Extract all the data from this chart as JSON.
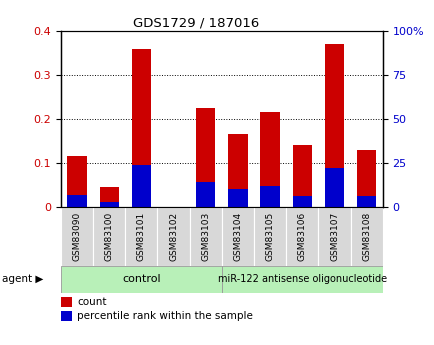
{
  "title": "GDS1729 / 187016",
  "samples": [
    "GSM83090",
    "GSM83100",
    "GSM83101",
    "GSM83102",
    "GSM83103",
    "GSM83104",
    "GSM83105",
    "GSM83106",
    "GSM83107",
    "GSM83108"
  ],
  "count_values": [
    0.115,
    0.045,
    0.36,
    0.0,
    0.225,
    0.165,
    0.215,
    0.14,
    0.37,
    0.13
  ],
  "percentile_values": [
    7,
    3,
    24,
    0,
    14,
    10,
    12,
    6,
    22,
    6
  ],
  "count_color": "#cc0000",
  "percentile_color": "#0000cc",
  "left_ylim": [
    0,
    0.4
  ],
  "right_ylim": [
    0,
    100
  ],
  "left_yticks": [
    0,
    0.1,
    0.2,
    0.3,
    0.4
  ],
  "right_yticks": [
    0,
    25,
    50,
    75,
    100
  ],
  "right_yticklabels": [
    "0",
    "25",
    "50",
    "75",
    "100%"
  ],
  "n_control": 5,
  "n_treatment": 5,
  "control_label": "control",
  "treatment_label": "miR-122 antisense oligonucleotide",
  "agent_label": "agent",
  "legend_count": "count",
  "legend_percentile": "percentile rank within the sample",
  "group_bg_color": "#b8f0b8",
  "sample_bg_color": "#d8d8d8",
  "bar_width": 0.6
}
